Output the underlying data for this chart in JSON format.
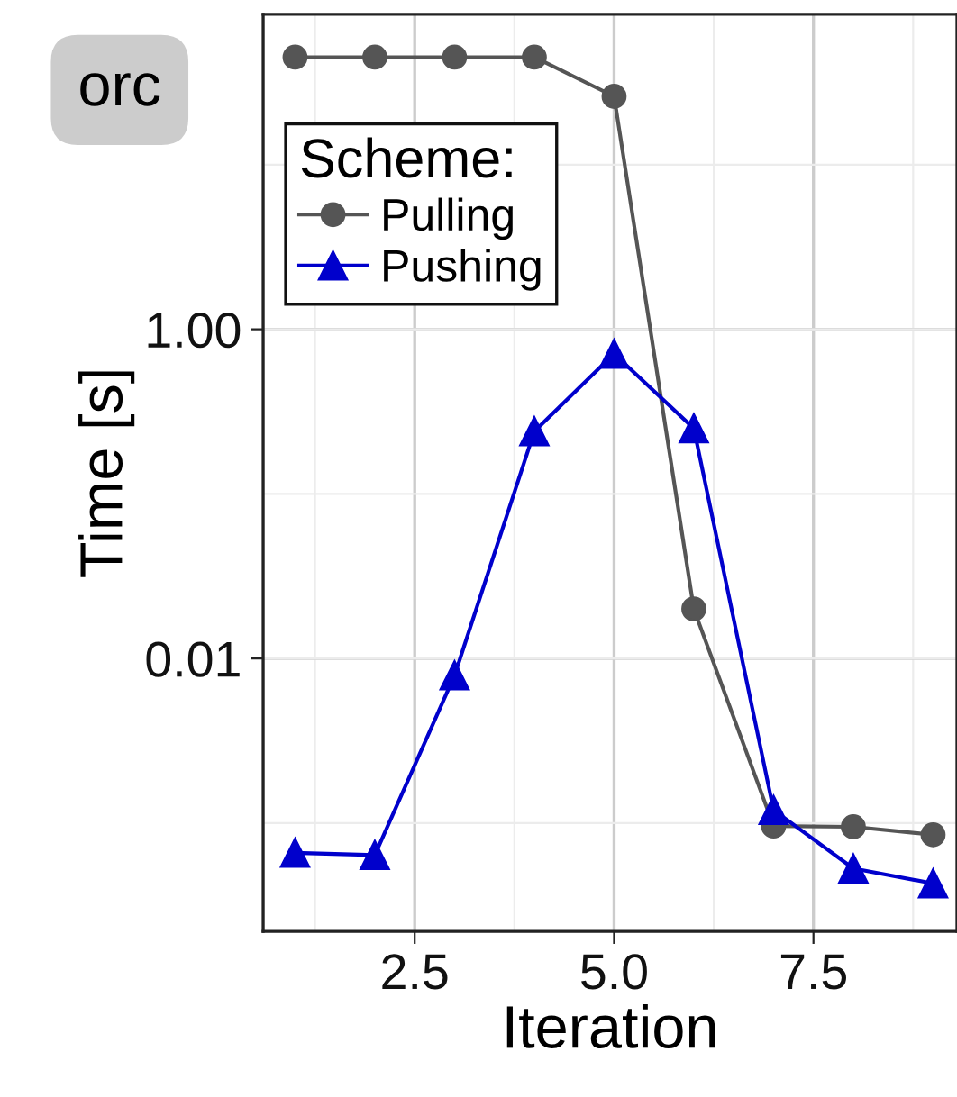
{
  "chart_data": {
    "type": "line",
    "xlabel": "Iteration",
    "ylabel": "Time [s]",
    "legend_title": "Scheme:",
    "annotations": [
      "orc"
    ],
    "x": [
      1,
      2,
      3,
      4,
      5,
      6,
      7,
      8,
      9
    ],
    "series": [
      {
        "name": "Pulling",
        "color": "#555555",
        "marker": "circle",
        "values": [
          45,
          45,
          45,
          45,
          26,
          0.02,
          0.00096,
          0.00095,
          0.00085
        ]
      },
      {
        "name": "Pushing",
        "color": "#0000cc",
        "marker": "triangle",
        "values": [
          0.00066,
          0.00064,
          0.0079,
          0.24,
          0.71,
          0.25,
          0.0012,
          0.00053,
          0.00043
        ]
      }
    ],
    "log": "y",
    "xlim": [
      0.6,
      9.3
    ],
    "xticks": [
      2.5,
      {
        "value": 5,
        "label": "5.0"
      },
      7.5
    ],
    "ylim": [
      0.00022,
      82
    ],
    "yticks": [
      {
        "value": 1,
        "label": "1.00"
      },
      {
        "value": 0.01,
        "label": "0.01"
      }
    ],
    "grid": true,
    "legend": "top left"
  }
}
